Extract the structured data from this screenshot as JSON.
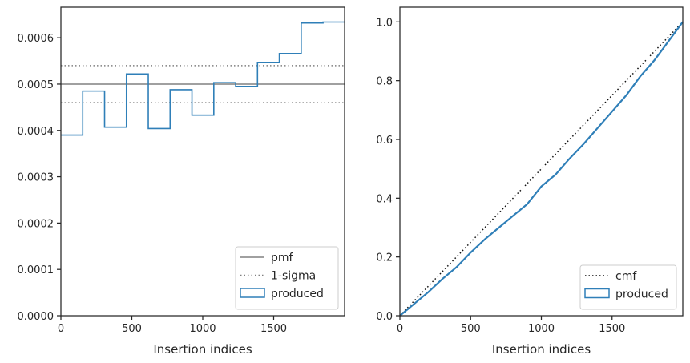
{
  "chart_data": [
    {
      "type": "step",
      "xlabel": "Insertion indices",
      "ylabel": "",
      "xlim": [
        0,
        2000
      ],
      "ylim": [
        0,
        0.000666
      ],
      "x_ticks": [
        0,
        500,
        1000,
        1500
      ],
      "x_tick_labels": [
        "0",
        "500",
        "1000",
        "1500"
      ],
      "y_ticks": [
        0,
        0.0001,
        0.0002,
        0.0003,
        0.0004,
        0.0005,
        0.0006
      ],
      "y_tick_labels": [
        "0.0000",
        "0.0001",
        "0.0002",
        "0.0003",
        "0.0004",
        "0.0005",
        "0.0006"
      ],
      "grid": false,
      "legend_position": "bottom-right",
      "reference_lines": [
        {
          "name": "pmf",
          "y": 0.0005,
          "style": "solid",
          "color": "#808080"
        },
        {
          "name": "1-sigma",
          "y": 0.00054,
          "style": "dotted",
          "color": "#808080"
        },
        {
          "name": "1-sigma",
          "y": 0.00046,
          "style": "dotted",
          "color": "#808080"
        }
      ],
      "series": [
        {
          "name": "produced",
          "color": "#2f7fb8",
          "bin_edges": [
            0,
            154,
            308,
            462,
            616,
            770,
            924,
            1078,
            1232,
            1386,
            1540,
            1694,
            1848,
            2000
          ],
          "values": [
            0.00039,
            0.000485,
            0.000407,
            0.000522,
            0.000404,
            0.000488,
            0.000433,
            0.000503,
            0.000495,
            0.000547,
            0.000566,
            0.000632,
            0.000634
          ]
        }
      ],
      "legend": [
        "pmf",
        "1-sigma",
        "produced"
      ]
    },
    {
      "type": "line",
      "xlabel": "Insertion indices",
      "ylabel": "",
      "xlim": [
        0,
        2000
      ],
      "ylim": [
        0,
        1.05
      ],
      "x_ticks": [
        0,
        500,
        1000,
        1500
      ],
      "x_tick_labels": [
        "0",
        "500",
        "1000",
        "1500"
      ],
      "y_ticks": [
        0,
        0.2,
        0.4,
        0.6,
        0.8,
        1.0
      ],
      "y_tick_labels": [
        "0.0",
        "0.2",
        "0.4",
        "0.6",
        "0.8",
        "1.0"
      ],
      "grid": false,
      "legend_position": "bottom-right",
      "series": [
        {
          "name": "cmf",
          "style": "dotted",
          "color": "#111111",
          "x": [
            0,
            2000
          ],
          "y": [
            0,
            1.0
          ]
        },
        {
          "name": "produced",
          "style": "solid",
          "color": "#2f7fb8",
          "x": [
            0,
            100,
            200,
            300,
            400,
            500,
            600,
            700,
            800,
            900,
            1000,
            1100,
            1200,
            1300,
            1400,
            1500,
            1600,
            1700,
            1800,
            1900,
            2000
          ],
          "y": [
            0,
            0.04,
            0.08,
            0.125,
            0.165,
            0.215,
            0.26,
            0.3,
            0.34,
            0.38,
            0.44,
            0.48,
            0.535,
            0.585,
            0.64,
            0.695,
            0.75,
            0.815,
            0.87,
            0.935,
            1.0
          ]
        }
      ],
      "legend": [
        "cmf",
        "produced"
      ]
    }
  ]
}
